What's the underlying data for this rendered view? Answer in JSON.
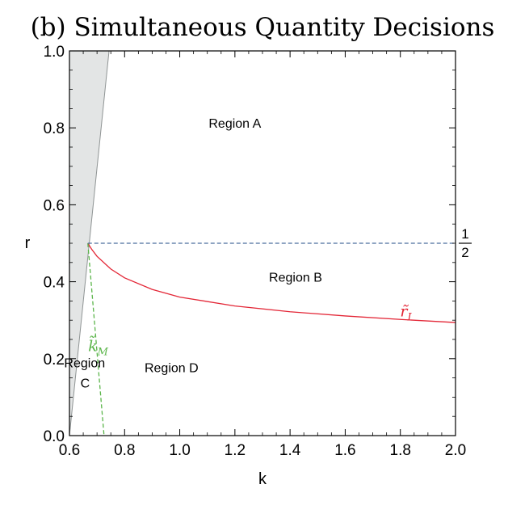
{
  "chart_data": {
    "type": "line",
    "title": "(b) Simultaneous Quantity Decisions",
    "xlabel": "k",
    "ylabel": "r",
    "xlim": [
      0.6,
      2.0
    ],
    "ylim": [
      0.0,
      1.0
    ],
    "xticks": [
      "0.6",
      "0.8",
      "1.0",
      "1.2",
      "1.4",
      "1.6",
      "1.8",
      "2.0"
    ],
    "yticks": [
      "0.0",
      "0.2",
      "0.4",
      "0.6",
      "0.8",
      "1.0"
    ],
    "grid": false,
    "shaded_region": {
      "color": "#e3e5e5",
      "boundary": [
        {
          "x": 0.6,
          "y": 0.0
        },
        {
          "x": 0.6,
          "y": 1.0
        },
        {
          "x": 0.7436,
          "y": 1.0
        },
        {
          "x": 0.6,
          "y": 0.0
        }
      ]
    },
    "series": [
      {
        "name": "r̃_I",
        "color": "#e32636",
        "style": "solid",
        "points": [
          {
            "x": 0.6667,
            "y": 0.5
          },
          {
            "x": 0.68,
            "y": 0.485
          },
          {
            "x": 0.7,
            "y": 0.466
          },
          {
            "x": 0.75,
            "y": 0.433
          },
          {
            "x": 0.8,
            "y": 0.41
          },
          {
            "x": 0.9,
            "y": 0.38
          },
          {
            "x": 1.0,
            "y": 0.36
          },
          {
            "x": 1.2,
            "y": 0.337
          },
          {
            "x": 1.4,
            "y": 0.322
          },
          {
            "x": 1.6,
            "y": 0.311
          },
          {
            "x": 1.8,
            "y": 0.302
          },
          {
            "x": 2.0,
            "y": 0.294
          }
        ]
      },
      {
        "name": "k̃_M",
        "color": "#5bb54a",
        "style": "dashed",
        "points": [
          {
            "x": 0.6667,
            "y": 0.5
          },
          {
            "x": 0.7254,
            "y": 0.0
          }
        ]
      },
      {
        "name": "1/2",
        "color": "#4a6e9e",
        "style": "dashed",
        "points": [
          {
            "x": 0.6667,
            "y": 0.5
          },
          {
            "x": 2.0,
            "y": 0.5
          }
        ]
      }
    ],
    "annotations": [
      {
        "text": "Region A",
        "x": 1.2,
        "y": 0.8
      },
      {
        "text": "Region B",
        "x": 1.42,
        "y": 0.4
      },
      {
        "text": "Region",
        "x": 0.655,
        "y": 0.178
      },
      {
        "text": "C",
        "x": 0.657,
        "y": 0.125
      },
      {
        "text": "Region D",
        "x": 0.97,
        "y": 0.165
      }
    ],
    "curve_labels": [
      {
        "text": "r̃",
        "sub": "I",
        "color": "#e32636",
        "x": 1.82,
        "y": 0.31
      },
      {
        "text": "k̃",
        "sub": "M",
        "color": "#5bb54a",
        "x": 0.704,
        "y": 0.22
      }
    ],
    "right_label": {
      "numerator": "1",
      "denominator": "2"
    }
  }
}
